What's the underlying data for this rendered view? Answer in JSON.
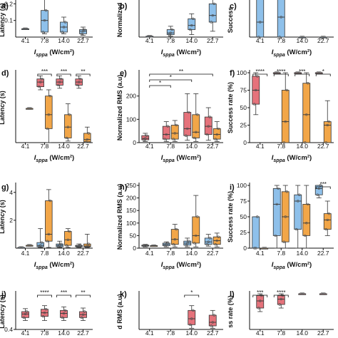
{
  "x_categories": [
    "4.1",
    "7.8",
    "14.0",
    "22.7"
  ],
  "xlabel": "I_sppa (W/cm²)",
  "colors": {
    "red": "#e5727b",
    "orange": "#f2a648",
    "blue": "#8ec0ea",
    "dark": "#333333"
  },
  "chart_data": [
    {
      "panel": "a",
      "type": "box",
      "ylabel": "Latency (s)",
      "ylim": [
        0,
        0.3
      ],
      "yticks": [
        0.1,
        0.2
      ],
      "categories": [
        "4.1",
        "7.8",
        "14.0",
        "22.7"
      ],
      "series": [
        {
          "color": "blue",
          "boxes": [
            {
              "min": 0.05,
              "q1": 0.05,
              "med": 0.05,
              "q3": 0.05,
              "max": 0.05
            },
            {
              "min": 0.02,
              "q1": 0.03,
              "med": 0.1,
              "q3": 0.16,
              "max": 0.3
            },
            {
              "min": 0.02,
              "q1": 0.03,
              "med": 0.06,
              "q3": 0.09,
              "max": 0.12
            },
            {
              "min": 0.01,
              "q1": 0.02,
              "med": 0.035,
              "q3": 0.045,
              "max": 0.06
            }
          ]
        }
      ],
      "brackets": []
    },
    {
      "panel": "b",
      "type": "box",
      "ylabel": "Normalized",
      "ylim": [
        0,
        300
      ],
      "yticks": [],
      "categories": [
        "4.1",
        "7.8",
        "14.0",
        "22.7"
      ],
      "series": [
        {
          "color": "blue",
          "boxes": [
            {
              "min": 5,
              "q1": 5,
              "med": 5,
              "q3": 5,
              "max": 5
            },
            {
              "min": 5,
              "q1": 15,
              "med": 25,
              "q3": 45,
              "max": 65
            },
            {
              "min": 15,
              "q1": 45,
              "med": 70,
              "q3": 110,
              "max": 140
            },
            {
              "min": 35,
              "q1": 90,
              "med": 130,
              "q3": 200,
              "max": 250
            }
          ]
        }
      ],
      "brackets": []
    },
    {
      "panel": "c",
      "type": "box",
      "ylabel": "Success",
      "ylim": [
        0,
        100
      ],
      "yticks": [],
      "categories": [
        "4.1",
        "7.8",
        "14.0",
        "22.7"
      ],
      "series": [
        {
          "color": "blue",
          "boxes": [
            {
              "min": 0,
              "q1": 0,
              "med": 30,
              "q3": 100,
              "max": 100
            },
            {
              "min": 0,
              "q1": 0,
              "med": 40,
              "q3": 100,
              "max": 100
            },
            {
              "min": 0,
              "q1": 0,
              "med": 0,
              "q3": 0,
              "max": 0
            },
            {
              "min": 0,
              "q1": 0,
              "med": 0,
              "q3": 0,
              "max": 0
            }
          ]
        }
      ],
      "brackets": []
    },
    {
      "panel": "d",
      "type": "box",
      "ylabel": "Latency (s)",
      "ylim": [
        0,
        4.5
      ],
      "yticks": [],
      "categories": [
        "4.1",
        "7.8",
        "14.0",
        "22.7"
      ],
      "series": [
        {
          "color": "red",
          "boxes": [
            null,
            {
              "min": 3.4,
              "q1": 3.6,
              "med": 3.9,
              "q3": 4.1,
              "max": 4.3
            },
            {
              "min": 3.5,
              "q1": 3.7,
              "med": 3.9,
              "q3": 4.1,
              "max": 4.3
            },
            {
              "min": 3.5,
              "q1": 3.7,
              "med": 3.9,
              "q3": 4.1,
              "max": 4.3
            }
          ]
        },
        {
          "color": "orange",
          "boxes": [
            {
              "min": 2.2,
              "q1": 2.2,
              "med": 2.2,
              "q3": 2.2,
              "max": 2.2
            },
            {
              "min": 0,
              "q1": 0.9,
              "med": 1.8,
              "q3": 3.0,
              "max": 3.4
            },
            {
              "min": 0.1,
              "q1": 0.3,
              "med": 1.0,
              "q3": 1.8,
              "max": 2.5
            },
            {
              "min": 0,
              "q1": 0.05,
              "med": 0.2,
              "q3": 0.6,
              "max": 1.0
            }
          ]
        }
      ],
      "brackets": [
        {
          "from": 1,
          "to": 1,
          "label": "***"
        },
        {
          "from": 2,
          "to": 2,
          "label": "***"
        },
        {
          "from": 3,
          "to": 3,
          "label": "**"
        }
      ]
    },
    {
      "panel": "e",
      "type": "box",
      "ylabel": "Normalized RMS (a.u)",
      "ylim": [
        0,
        300
      ],
      "yticks": [
        0,
        100,
        200
      ],
      "categories": [
        "4.1",
        "7.8",
        "14.0",
        "22.7"
      ],
      "series": [
        {
          "color": "red",
          "boxes": [
            {
              "min": 5,
              "q1": 12,
              "med": 18,
              "q3": 30,
              "max": 40
            },
            {
              "min": 5,
              "q1": 15,
              "med": 35,
              "q3": 70,
              "max": 90
            },
            {
              "min": 10,
              "q1": 30,
              "med": 60,
              "q3": 130,
              "max": 210
            },
            {
              "min": 10,
              "q1": 35,
              "med": 70,
              "q3": 110,
              "max": 150
            }
          ]
        },
        {
          "color": "orange",
          "boxes": [
            null,
            {
              "min": 5,
              "q1": 15,
              "med": 40,
              "q3": 75,
              "max": 95
            },
            {
              "min": 5,
              "q1": 20,
              "med": 45,
              "q3": 120,
              "max": 210
            },
            {
              "min": 5,
              "q1": 15,
              "med": 35,
              "q3": 60,
              "max": 90
            }
          ]
        }
      ],
      "brackets": [
        {
          "from": 0,
          "to": 3,
          "label": "**"
        },
        {
          "from": 0,
          "to": 2,
          "label": "*"
        },
        {
          "from": 0,
          "to": 1,
          "label": "*"
        }
      ]
    },
    {
      "panel": "f",
      "type": "box",
      "ylabel": "Success rate (%)",
      "ylim": [
        0,
        100
      ],
      "yticks": [
        0,
        25,
        50,
        75,
        100
      ],
      "categories": [
        "4.1",
        "7.8",
        "14.0",
        "22.7"
      ],
      "series": [
        {
          "color": "red",
          "boxes": [
            {
              "min": 40,
              "q1": 55,
              "med": 75,
              "q3": 95,
              "max": 100
            },
            {
              "min": 100,
              "q1": 100,
              "med": 100,
              "q3": 100,
              "max": 100
            },
            {
              "min": 100,
              "q1": 100,
              "med": 100,
              "q3": 100,
              "max": 100
            },
            {
              "min": 100,
              "q1": 100,
              "med": 100,
              "q3": 100,
              "max": 100
            }
          ]
        },
        {
          "color": "orange",
          "boxes": [
            null,
            {
              "min": 0,
              "q1": 0,
              "med": 30,
              "q3": 75,
              "max": 100
            },
            {
              "min": 0,
              "q1": 0,
              "med": 40,
              "q3": 85,
              "max": 100
            },
            {
              "min": 0,
              "q1": 0,
              "med": 25,
              "q3": 30,
              "max": 60
            }
          ]
        }
      ],
      "brackets": [
        {
          "from": 0,
          "to": 0,
          "label": "****"
        },
        {
          "from": 1,
          "to": 1,
          "label": "****"
        },
        {
          "from": 2,
          "to": 2,
          "label": "***"
        },
        {
          "from": 3,
          "to": 3,
          "label": "*"
        }
      ]
    },
    {
      "panel": "g",
      "type": "box",
      "ylabel": "Latency (s)",
      "ylim": [
        0,
        4.5
      ],
      "yticks": [
        2,
        4
      ],
      "categories": [
        "4.1",
        "7.8",
        "14.0",
        "22.7"
      ],
      "series": [
        {
          "color": "blue",
          "boxes": [
            {
              "min": 0.05,
              "q1": 0.05,
              "med": 0.05,
              "q3": 0.05,
              "max": 0.05
            },
            {
              "min": 0.05,
              "q1": 0.1,
              "med": 0.2,
              "q3": 0.4,
              "max": 1.4
            },
            {
              "min": 0.05,
              "q1": 0.1,
              "med": 0.2,
              "q3": 0.3,
              "max": 0.5
            },
            {
              "min": 0.05,
              "q1": 0.1,
              "med": 0.15,
              "q3": 0.2,
              "max": 0.3
            }
          ]
        },
        {
          "color": "orange",
          "boxes": [
            {
              "min": 0.2,
              "q1": 0.2,
              "med": 0.2,
              "q3": 0.2,
              "max": 0.2
            },
            {
              "min": 0.05,
              "q1": 0.5,
              "med": 1.0,
              "q3": 3.4,
              "max": 4.2
            },
            {
              "min": 0.05,
              "q1": 0.2,
              "med": 0.6,
              "q3": 1.2,
              "max": 1.4
            },
            {
              "min": 0.05,
              "q1": 0.1,
              "med": 0.15,
              "q3": 0.3,
              "max": 1.0
            }
          ]
        }
      ],
      "brackets": []
    },
    {
      "panel": "h",
      "type": "box",
      "ylabel": "Normalized RMS (a.u)",
      "ylim": [
        0,
        250
      ],
      "yticks": [
        0,
        50,
        100,
        150,
        200,
        250
      ],
      "categories": [
        "4.1",
        "7.8",
        "14.0",
        "22.7"
      ],
      "series": [
        {
          "color": "blue",
          "boxes": [
            {
              "min": 5,
              "q1": 8,
              "med": 10,
              "q3": 12,
              "max": 15
            },
            {
              "min": 5,
              "q1": 10,
              "med": 15,
              "q3": 20,
              "max": 25
            },
            {
              "min": 5,
              "q1": 12,
              "med": 20,
              "q3": 28,
              "max": 40
            },
            {
              "min": 8,
              "q1": 15,
              "med": 25,
              "q3": 40,
              "max": 55
            }
          ]
        },
        {
          "color": "orange",
          "boxes": [
            {
              "min": 10,
              "q1": 10,
              "med": 10,
              "q3": 10,
              "max": 10
            },
            {
              "min": 5,
              "q1": 15,
              "med": 35,
              "q3": 75,
              "max": 95
            },
            {
              "min": 5,
              "q1": 20,
              "med": 50,
              "q3": 125,
              "max": 210
            },
            {
              "min": 5,
              "q1": 15,
              "med": 30,
              "q3": 45,
              "max": 60
            }
          ]
        }
      ],
      "brackets": []
    },
    {
      "panel": "i",
      "type": "box",
      "ylabel": "Success rate (%)",
      "ylim": [
        0,
        100
      ],
      "yticks": [
        0,
        25,
        50,
        75,
        100
      ],
      "categories": [
        "4.1",
        "7.8",
        "14.0",
        "22.7"
      ],
      "series": [
        {
          "color": "blue",
          "boxes": [
            {
              "min": 0,
              "q1": 0,
              "med": 0,
              "q3": 50,
              "max": 50
            },
            {
              "min": 0,
              "q1": 20,
              "med": 70,
              "q3": 95,
              "max": 100
            },
            {
              "min": 0,
              "q1": 30,
              "med": 75,
              "q3": 85,
              "max": 100
            },
            {
              "min": 80,
              "q1": 85,
              "med": 95,
              "q3": 100,
              "max": 100
            }
          ]
        },
        {
          "color": "orange",
          "boxes": [
            {
              "min": 0,
              "q1": 0,
              "med": 0,
              "q3": 0,
              "max": 0
            },
            {
              "min": 0,
              "q1": 10,
              "med": 50,
              "q3": 90,
              "max": 100
            },
            {
              "min": 0,
              "q1": 20,
              "med": 40,
              "q3": 70,
              "max": 100
            },
            {
              "min": 20,
              "q1": 30,
              "med": 45,
              "q3": 55,
              "max": 75
            }
          ]
        }
      ],
      "brackets": [
        {
          "from": 3,
          "to": 3,
          "label": "***"
        }
      ]
    },
    {
      "panel": "j",
      "type": "box",
      "ylabel": "Latency (s)",
      "ylim": [
        0.4,
        1.0
      ],
      "yticks": [
        0.4
      ],
      "categories": [
        "4.1",
        "7.8",
        "14.0",
        "22.7"
      ],
      "series": [
        {
          "color": "red",
          "boxes": [
            {
              "min": 0.55,
              "q1": 0.6,
              "med": 0.66,
              "q3": 0.7,
              "max": 0.75
            },
            {
              "min": 0.55,
              "q1": 0.62,
              "med": 0.68,
              "q3": 0.74,
              "max": 0.8
            },
            {
              "min": 0.55,
              "q1": 0.6,
              "med": 0.67,
              "q3": 0.72,
              "max": 0.78
            },
            {
              "min": 0.55,
              "q1": 0.6,
              "med": 0.65,
              "q3": 0.7,
              "max": 0.76
            }
          ]
        }
      ],
      "brackets": [
        {
          "from": 1,
          "to": 1,
          "label": "****"
        },
        {
          "from": 2,
          "to": 2,
          "label": "***"
        },
        {
          "from": 3,
          "to": 3,
          "label": "**"
        }
      ]
    },
    {
      "panel": "k",
      "type": "box",
      "ylabel": "d RMS (a.u)",
      "ylim": [
        0,
        300
      ],
      "yticks": [],
      "categories": [
        "4.1",
        "7.8",
        "14.0",
        "22.7"
      ],
      "series": [
        {
          "color": "red",
          "boxes": [
            null,
            null,
            {
              "min": 10,
              "q1": 40,
              "med": 90,
              "q3": 160,
              "max": 200
            },
            {
              "min": 10,
              "q1": 30,
              "med": 60,
              "q3": 120,
              "max": 160
            }
          ]
        }
      ],
      "brackets": [
        {
          "from": 2,
          "to": 2,
          "label": "*"
        }
      ]
    },
    {
      "panel": "l",
      "type": "box",
      "ylabel": "ss rate (%)",
      "ylim": [
        0,
        100
      ],
      "yticks": [],
      "categories": [
        "4.1",
        "7.8",
        "14.0",
        "22.7"
      ],
      "series": [
        {
          "color": "red",
          "boxes": [
            {
              "min": 50,
              "q1": 60,
              "med": 80,
              "q3": 95,
              "max": 100
            },
            {
              "min": 60,
              "q1": 70,
              "med": 85,
              "q3": 95,
              "max": 100
            },
            {
              "min": 100,
              "q1": 100,
              "med": 100,
              "q3": 100,
              "max": 100
            },
            {
              "min": 100,
              "q1": 100,
              "med": 100,
              "q3": 100,
              "max": 100
            }
          ]
        }
      ],
      "brackets": [
        {
          "from": 0,
          "to": 0,
          "label": "***"
        },
        {
          "from": 1,
          "to": 1,
          "label": "****"
        }
      ]
    }
  ]
}
